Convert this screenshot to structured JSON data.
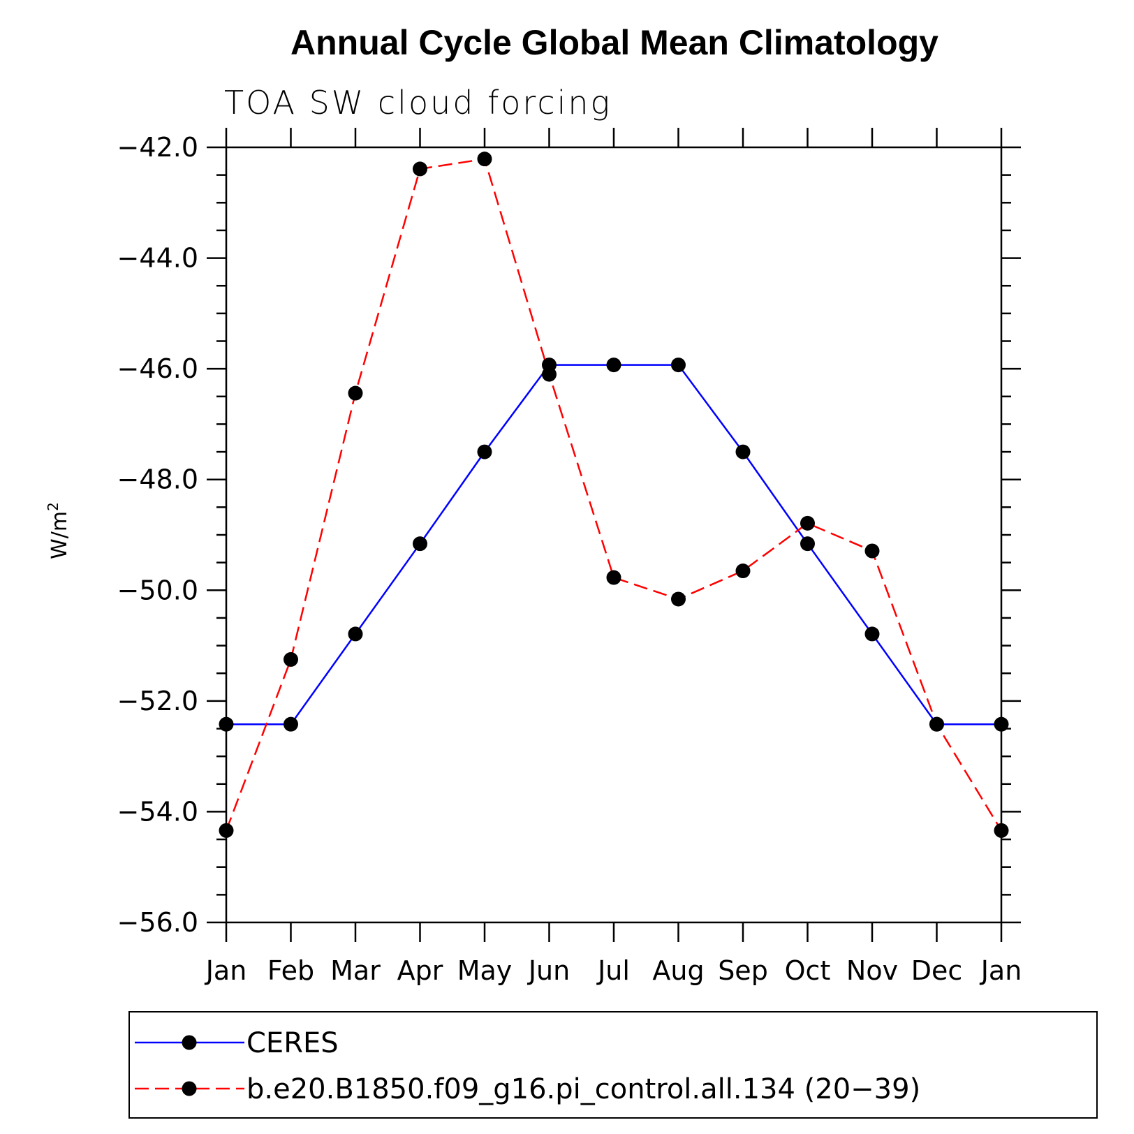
{
  "chart_data": {
    "type": "line",
    "title": "Annual Cycle Global Mean Climatology",
    "subtitle": "TOA SW cloud forcing",
    "ylabel": "W/m",
    "ylabel_superscript": "2",
    "xlabel": "",
    "categories": [
      "Jan",
      "Feb",
      "Mar",
      "Apr",
      "May",
      "Jun",
      "Jul",
      "Aug",
      "Sep",
      "Oct",
      "Nov",
      "Dec",
      "Jan"
    ],
    "ylim": [
      -56.0,
      -42.0
    ],
    "yticks": [
      -56.0,
      -54.0,
      -52.0,
      -50.0,
      -48.0,
      -46.0,
      -44.0,
      -42.0
    ],
    "ytick_labels": [
      "−56.0",
      "−54.0",
      "−52.0",
      "−50.0",
      "−48.0",
      "−46.0",
      "−44.0",
      "−42.0"
    ],
    "grid": false,
    "legend_position": "bottom",
    "series": [
      {
        "name": "CERES",
        "color": "#0000ff",
        "line_style": "solid",
        "marker": "filled-circle",
        "values": [
          -52.42,
          -52.42,
          -50.79,
          -49.16,
          -47.5,
          -45.93,
          -45.93,
          -45.93,
          -47.5,
          -49.16,
          -50.79,
          -52.42,
          -52.42
        ]
      },
      {
        "name": "b.e20.B1850.f09_g16.pi_control.all.134 (20−39)",
        "color": "#ff0000",
        "line_style": "dashed",
        "marker": "filled-circle",
        "values": [
          -54.34,
          -51.25,
          -46.44,
          -42.39,
          -42.21,
          -46.1,
          -49.77,
          -50.16,
          -49.65,
          -48.79,
          -49.29,
          -52.42,
          -54.34
        ]
      }
    ]
  }
}
